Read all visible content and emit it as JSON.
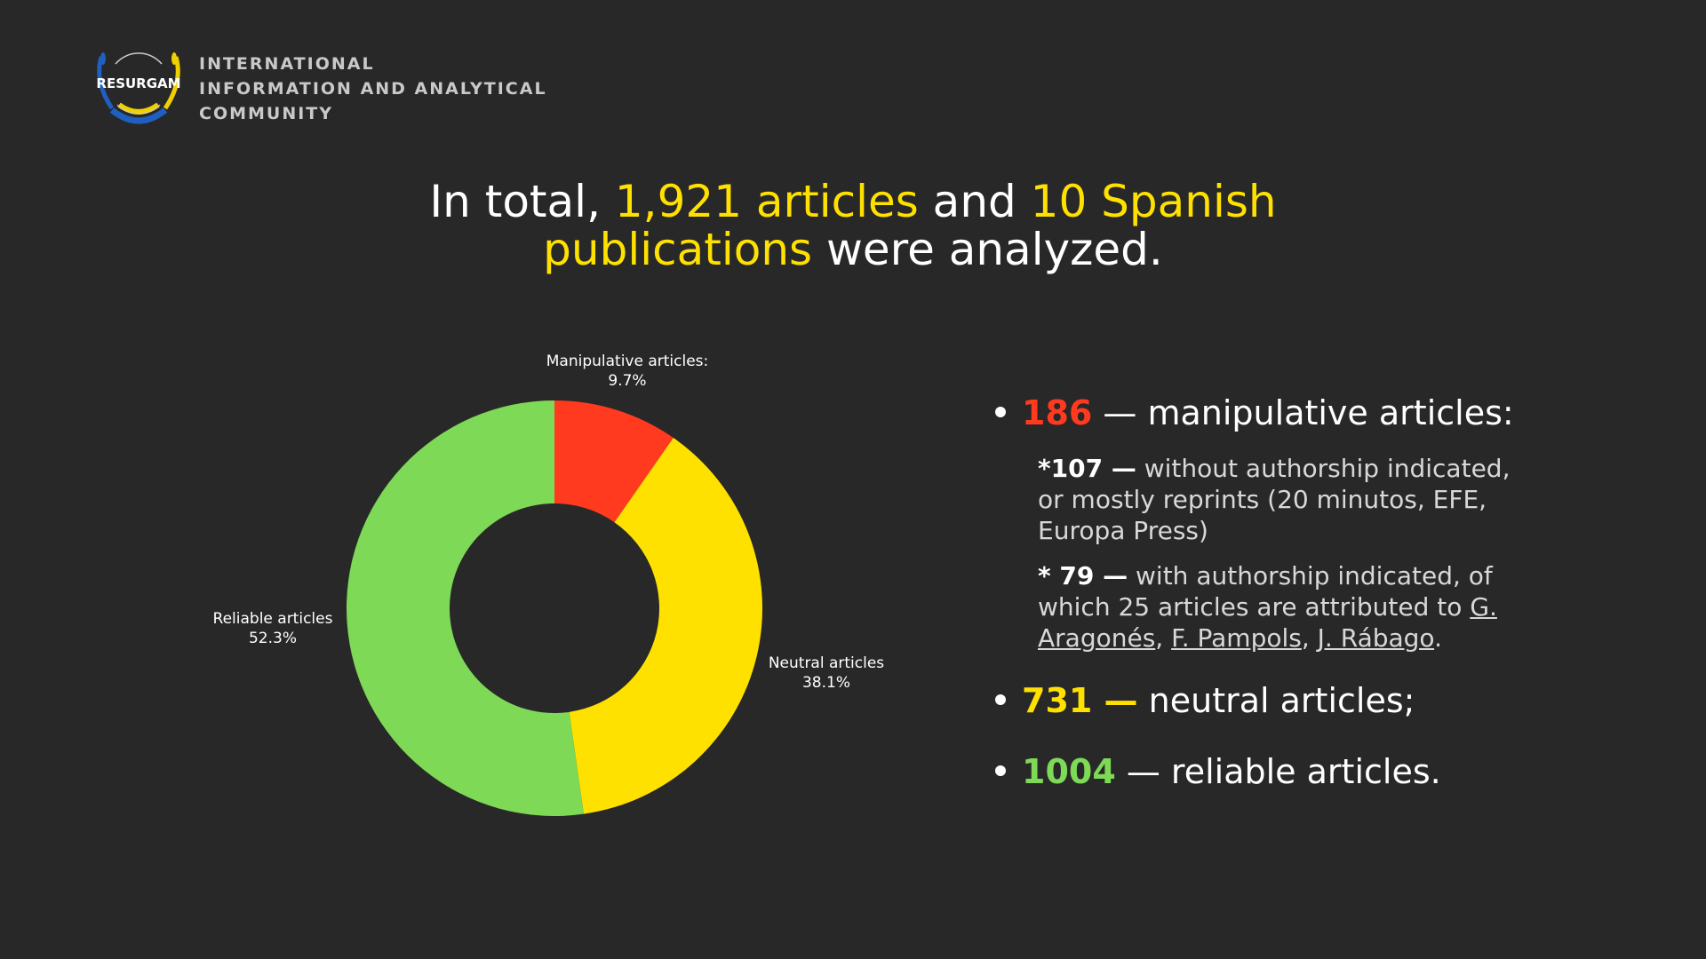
{
  "logo": {
    "text": "RESURGAM"
  },
  "org": {
    "line1": "INTERNATIONAL",
    "line2": "INFORMATION AND ANALYTICAL",
    "line3": "COMMUNITY"
  },
  "headline": {
    "p1": "In total, ",
    "h1": "1,921 articles",
    "p2": " and ",
    "h2": "10 Spanish publications",
    "p3": " were analyzed."
  },
  "chart_data": {
    "type": "pie",
    "donut": true,
    "slices": [
      {
        "label": "Manipulative articles:",
        "value": 9.7,
        "display": "9.7%",
        "color": "#ff3a1e"
      },
      {
        "label": "Neutral articles",
        "value": 38.1,
        "display": "38.1%",
        "color": "#ffe100"
      },
      {
        "label": "Reliable articles",
        "value": 52.3,
        "display": "52.3%",
        "color": "#7ed957"
      }
    ]
  },
  "bullets": {
    "b1": {
      "num": "186",
      "text": " — manipulative articles:"
    },
    "sub1": {
      "num": "*107 —",
      "text": " without authorship indicated, or mostly reprints (20 minutos, EFE, Europa Press)"
    },
    "sub2": {
      "num": "* 79 —",
      "text": " with authorship indicated, of which 25 articles are attributed to ",
      "n1": "G. Aragonés",
      "sep1": ", ",
      "n2": "F. Pampols",
      "sep2": ", ",
      "n3": "J. Rábago",
      "end": "."
    },
    "b2": {
      "num": "731 —",
      "text": " neutral articles;"
    },
    "b3": {
      "num": "1004",
      "text": " — reliable articles."
    }
  }
}
